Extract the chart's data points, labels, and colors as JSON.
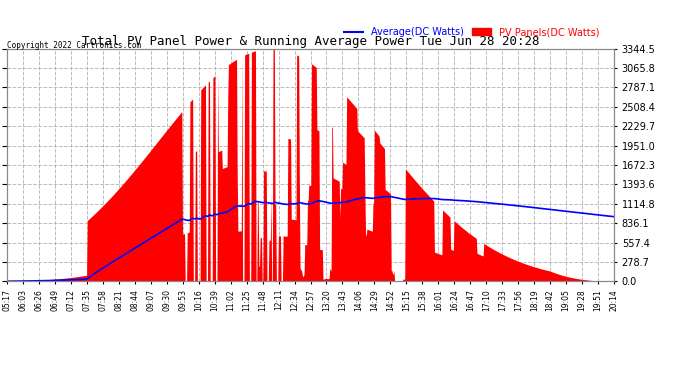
{
  "title": "Total PV Panel Power & Running Average Power Tue Jun 28 20:28",
  "copyright": "Copyright 2022 Cartronics.com",
  "legend_avg": "Average(DC Watts)",
  "legend_pv": "PV Panels(DC Watts)",
  "y_max": 3344.5,
  "y_ticks": [
    0.0,
    278.7,
    557.4,
    836.1,
    1114.8,
    1393.6,
    1672.3,
    1951.0,
    2229.7,
    2508.4,
    2787.1,
    3065.8,
    3344.5
  ],
  "y_tick_labels": [
    "0.0",
    "278.7",
    "557.4",
    "836.1",
    "1114.8",
    "1393.6",
    "1672.3",
    "1951.0",
    "2229.7",
    "2508.4",
    "2787.1",
    "3065.8",
    "3344.5"
  ],
  "x_labels": [
    "05:17",
    "06:03",
    "06:26",
    "06:49",
    "07:12",
    "07:35",
    "07:58",
    "08:21",
    "08:44",
    "09:07",
    "09:30",
    "09:53",
    "10:16",
    "10:39",
    "11:02",
    "11:25",
    "11:48",
    "12:11",
    "12:34",
    "12:57",
    "13:20",
    "13:43",
    "14:06",
    "14:29",
    "14:52",
    "15:15",
    "15:38",
    "16:01",
    "16:24",
    "16:47",
    "17:10",
    "17:33",
    "17:56",
    "18:19",
    "18:42",
    "19:05",
    "19:28",
    "19:51",
    "20:14"
  ],
  "plot_bg_color": "#ffffff",
  "fig_bg_color": "#ffffff",
  "grid_color": "#aaaaaa",
  "pv_color": "#ff0000",
  "avg_color": "#0000ff",
  "title_color": "#000000"
}
